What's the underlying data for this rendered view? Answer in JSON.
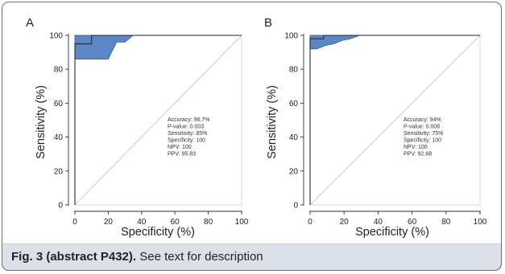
{
  "caption": {
    "label": "Fig. 3 (abstract P432).",
    "text": " See text for description"
  },
  "colors": {
    "fill": "#5b87c7",
    "step_line": "#2a2a2a",
    "diagonal": "#bfbfbf",
    "caption_band": "#dbe0e9"
  },
  "chart_data": [
    {
      "panel": "A",
      "type": "line",
      "xlabel": "Specificity (%)",
      "ylabel": "Sensitivity (%)",
      "xlim": [
        0,
        100
      ],
      "ylim": [
        0,
        100
      ],
      "xticks": [
        "0",
        "20",
        "40",
        "60",
        "80",
        "100"
      ],
      "yticks": [
        "0",
        "20",
        "40",
        "60",
        "80",
        "100"
      ],
      "stats": [
        "Accuracy: 96.7%",
        "P-value: 0.003",
        "Sensitivity: 85%",
        "Specificity: 100",
        "NPV: 100",
        "PPV: 95.83"
      ],
      "series": [
        {
          "role": "roc_step",
          "x": [
            0,
            0,
            0,
            10,
            10,
            100
          ],
          "y": [
            0,
            86,
            95,
            95,
            100,
            100
          ]
        },
        {
          "role": "ci_lower",
          "x": [
            0,
            0,
            20,
            25,
            30,
            35,
            100
          ],
          "y": [
            0,
            86,
            86,
            96,
            96,
            100,
            100
          ]
        },
        {
          "role": "ci_upper",
          "x": [
            0,
            0,
            100
          ],
          "y": [
            0,
            100,
            100
          ]
        },
        {
          "role": "reference",
          "x": [
            0,
            100
          ],
          "y": [
            0,
            100
          ]
        }
      ]
    },
    {
      "panel": "B",
      "type": "line",
      "xlabel": "Specificity (%)",
      "ylabel": "Sensitivity (%)",
      "xlim": [
        0,
        100
      ],
      "ylim": [
        0,
        100
      ],
      "xticks": [
        "0",
        "20",
        "40",
        "60",
        "80",
        "100"
      ],
      "yticks": [
        "0",
        "20",
        "40",
        "60",
        "80",
        "100"
      ],
      "stats": [
        "Accuracy: 94%",
        "P-value: 0.008",
        "Sensitivity: 75%",
        "Specificity: 100",
        "NPV: 100",
        "PPV: 92.68"
      ],
      "series": [
        {
          "role": "roc_step",
          "x": [
            0,
            0,
            0,
            8,
            8,
            100
          ],
          "y": [
            0,
            92,
            98,
            98,
            100,
            100
          ]
        },
        {
          "role": "ci_lower",
          "x": [
            0,
            0,
            4,
            9,
            14,
            19,
            24,
            29,
            100
          ],
          "y": [
            0,
            92,
            92,
            94,
            95,
            97,
            98,
            100,
            100
          ]
        },
        {
          "role": "ci_upper",
          "x": [
            0,
            0,
            100
          ],
          "y": [
            0,
            100,
            100
          ]
        },
        {
          "role": "reference",
          "x": [
            0,
            100
          ],
          "y": [
            0,
            100
          ]
        }
      ]
    }
  ]
}
